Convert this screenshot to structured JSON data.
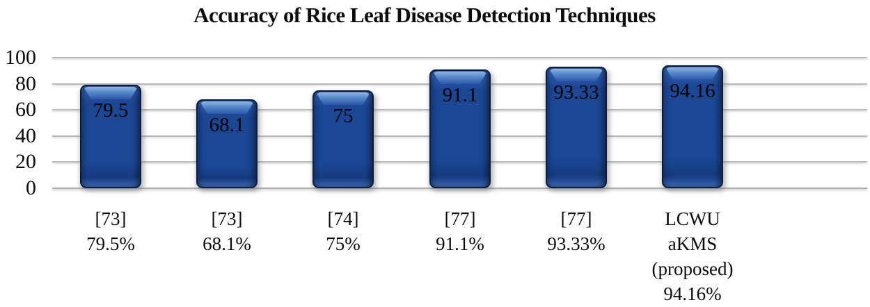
{
  "chart_data": {
    "type": "bar",
    "title": "Accuracy of Rice Leaf Disease Detection Techniques",
    "categories": [
      "[73] 79.5%",
      "[73] 68.1%",
      "[74] 75%",
      "[77] 91.1%",
      "[77] 93.33%",
      "LCWU aKMS (proposed) 94.16%"
    ],
    "category_lines": [
      [
        "[73]",
        "79.5%"
      ],
      [
        "[73]",
        "68.1%"
      ],
      [
        "[74]",
        "75%"
      ],
      [
        "[77]",
        "91.1%"
      ],
      [
        "[77]",
        "93.33%"
      ],
      [
        "LCWU",
        "aKMS",
        "(proposed)",
        "94.16%"
      ]
    ],
    "values": [
      79.5,
      68.1,
      75,
      91.1,
      93.33,
      94.16
    ],
    "bar_labels": [
      "79.5",
      "68.1",
      "75",
      "91.1",
      "93.33",
      "94.16"
    ],
    "xlabel": "",
    "ylabel": "",
    "ylim": [
      0,
      100
    ],
    "yticks": [
      0,
      20,
      40,
      60,
      80,
      100
    ],
    "grid": true,
    "legend": "none",
    "bar_label_position": "inside-end",
    "series_name": "Accuracy"
  },
  "colors": {
    "bar_main": "#1c4795",
    "bar_highlight": "#7fa9df",
    "bar_border": "#0a1e40",
    "gridline": "#b9b9b9",
    "text": "#0c0c0c",
    "background": "#ffffff"
  }
}
